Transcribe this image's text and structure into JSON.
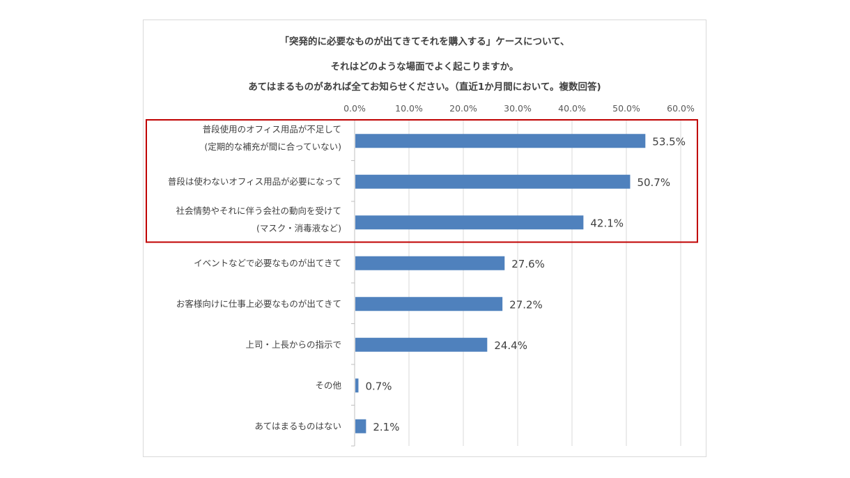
{
  "chart_data": {
    "type": "bar",
    "orientation": "horizontal",
    "title_lines": [
      "「突発的に必要なものが出てきてそれを購入する」ケースについて、",
      "それはどのような場面でよく起こりますか。",
      "あてはまるものがあれば全てお知らせください。（直近1か月間において。複数回答)"
    ],
    "categories": [
      [
        "普段使用のオフィス用品が不足して",
        "(定期的な補充が間に合っていない)"
      ],
      [
        "普段は使わないオフィス用品が必要になって"
      ],
      [
        "社会情勢やそれに伴う会社の動向を受けて",
        "(マスク・消毒液など)"
      ],
      [
        "イベントなどで必要なものが出てきて"
      ],
      [
        "お客様向けに仕事上必要なものが出てきて"
      ],
      [
        "上司・上長からの指示で"
      ],
      [
        "その他"
      ],
      [
        "あてはまるものはない"
      ]
    ],
    "values": [
      53.5,
      50.7,
      42.1,
      27.6,
      27.2,
      24.4,
      0.7,
      2.1
    ],
    "value_labels": [
      "53.5%",
      "50.7%",
      "42.1%",
      "27.6%",
      "27.2%",
      "24.4%",
      "0.7%",
      "2.1%"
    ],
    "xlim": [
      0,
      60
    ],
    "x_ticks": [
      "0.0%",
      "10.0%",
      "20.0%",
      "30.0%",
      "40.0%",
      "50.0%",
      "60.0%"
    ],
    "x_axis_position": "top",
    "grid": true,
    "highlight_categories": [
      0,
      1,
      2
    ],
    "colors": {
      "bar": "#4f81bd",
      "highlight": "#c00000",
      "grid": "#d9d9d9",
      "text": "#404040"
    }
  }
}
